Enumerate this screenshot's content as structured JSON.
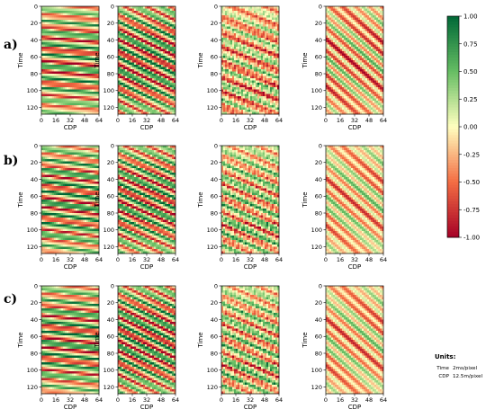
{
  "figure": {
    "row_labels": [
      "a)",
      "b)",
      "c)"
    ],
    "units": {
      "title": "Units:",
      "rows": [
        {
          "key": "Time",
          "value": "2ms/pixel"
        },
        {
          "key": "CDP",
          "value": "12.5m/pixel"
        }
      ]
    }
  },
  "colors": {
    "negative": "#a50026",
    "zero": "#ffffbf",
    "positive": "#006837"
  },
  "chart_data": {
    "type": "heatmap",
    "layout": {
      "rows": 3,
      "cols": 4
    },
    "xlabel": "CDP",
    "ylabel": "Time",
    "x_ticks": [
      0,
      16,
      32,
      48,
      64
    ],
    "y_ticks": [
      0,
      20,
      40,
      60,
      80,
      100,
      120
    ],
    "xlim": [
      0,
      64
    ],
    "ylim": [
      128,
      0
    ],
    "colormap": "RdYlGn",
    "colorbar": {
      "min": -1.0,
      "max": 1.0,
      "ticks": [
        "1.00",
        "0.75",
        "0.50",
        "0.25",
        "0.00",
        "-0.25",
        "-0.50",
        "-0.75",
        "-1.00"
      ]
    },
    "panels": [
      {
        "row": 0,
        "col": 0,
        "slope": 0.1,
        "freq": 0.85,
        "amp": 0.85,
        "bias": 0.0,
        "texture": "banded"
      },
      {
        "row": 0,
        "col": 1,
        "slope": 0.55,
        "freq": 0.8,
        "amp": 1.0,
        "bias": 0.0,
        "texture": "banded"
      },
      {
        "row": 0,
        "col": 2,
        "slope": 0.45,
        "freq": 0.65,
        "amp": 0.55,
        "bias": -0.12,
        "texture": "noisy"
      },
      {
        "row": 0,
        "col": 3,
        "slope": 0.95,
        "freq": 0.5,
        "amp": 0.95,
        "bias": -0.18,
        "texture": "dipping"
      },
      {
        "row": 1,
        "col": 0,
        "slope": 0.15,
        "freq": 0.9,
        "amp": 0.9,
        "bias": 0.05,
        "texture": "banded"
      },
      {
        "row": 1,
        "col": 1,
        "slope": 0.5,
        "freq": 0.85,
        "amp": 0.95,
        "bias": 0.0,
        "texture": "banded"
      },
      {
        "row": 1,
        "col": 2,
        "slope": 0.5,
        "freq": 0.7,
        "amp": 0.6,
        "bias": 0.0,
        "texture": "noisy"
      },
      {
        "row": 1,
        "col": 3,
        "slope": 0.95,
        "freq": 0.5,
        "amp": 0.75,
        "bias": -0.1,
        "texture": "dipping"
      },
      {
        "row": 2,
        "col": 0,
        "slope": 0.12,
        "freq": 0.9,
        "amp": 0.9,
        "bias": 0.02,
        "texture": "banded"
      },
      {
        "row": 2,
        "col": 1,
        "slope": 0.55,
        "freq": 0.85,
        "amp": 1.0,
        "bias": 0.0,
        "texture": "banded"
      },
      {
        "row": 2,
        "col": 2,
        "slope": 0.5,
        "freq": 0.7,
        "amp": 0.6,
        "bias": 0.0,
        "texture": "noisy"
      },
      {
        "row": 2,
        "col": 3,
        "slope": 0.95,
        "freq": 0.5,
        "amp": 0.75,
        "bias": -0.12,
        "texture": "dipping"
      }
    ]
  }
}
